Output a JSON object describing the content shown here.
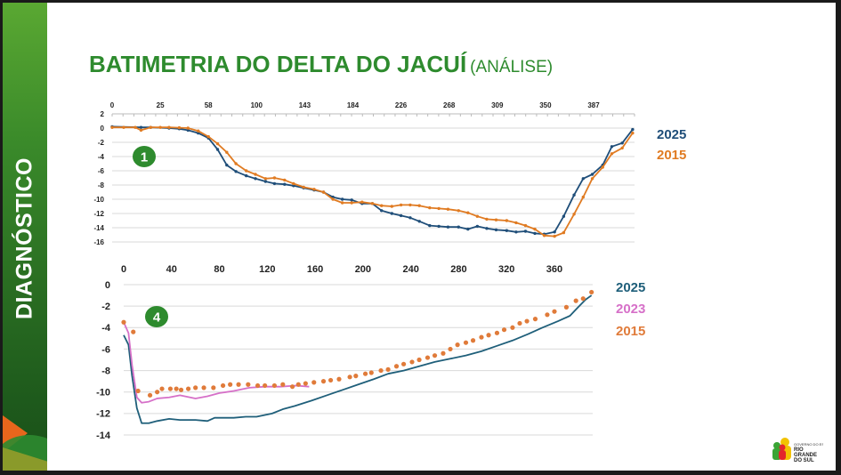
{
  "sidebar": {
    "label": "DIAGNÓSTICO"
  },
  "title": {
    "main": "BATIMETRIA DO DELTA DO JACUÍ",
    "sub": "(ANÁLISE)"
  },
  "colors": {
    "green": "#2e8b2e",
    "s2025": "#1f4e79",
    "s2015": "#e07b22",
    "s2023": "#d670c8",
    "badge": "#2e8b2e"
  },
  "logo": {
    "text": "GOVERNO DO ESTADO RIO GRANDE DO SUL"
  },
  "chart_data": [
    {
      "type": "line",
      "badge": "1",
      "xticks": [
        0,
        25,
        58,
        100,
        143,
        184,
        226,
        268,
        309,
        350,
        387
      ],
      "yticks": [
        2,
        0,
        -2,
        -4,
        -6,
        -8,
        -10,
        -12,
        -14,
        -16
      ],
      "ylim": [
        -16,
        2
      ],
      "grid": true,
      "legend_position": "right",
      "series": [
        {
          "name": "2025",
          "color": "#1f4e79",
          "markers": true,
          "x": [
            0,
            15,
            20,
            31,
            38,
            44,
            51,
            58,
            66,
            74,
            82,
            91,
            99,
            108,
            116,
            125,
            133,
            142,
            151,
            159,
            167,
            175,
            183,
            192,
            201,
            209,
            218,
            226,
            234,
            242,
            251,
            259,
            267,
            276,
            284,
            292,
            300,
            308,
            317,
            325,
            333,
            341,
            349,
            357,
            364,
            372,
            379,
            386,
            394,
            401,
            409,
            417
          ],
          "y": [
            0.2,
            0.1,
            0.1,
            0,
            -0.1,
            -0.3,
            -0.7,
            -1.4,
            -3.0,
            -5.2,
            -6.1,
            -6.7,
            -7.1,
            -7.5,
            -7.8,
            -7.9,
            -8.1,
            -8.4,
            -8.7,
            -9.0,
            -9.7,
            -10.0,
            -10.1,
            -10.6,
            -10.6,
            -11.6,
            -12.0,
            -12.3,
            -12.6,
            -13.1,
            -13.7,
            -13.8,
            -13.9,
            -13.9,
            -14.2,
            -13.8,
            -14.1,
            -14.3,
            -14.4,
            -14.6,
            -14.5,
            -14.8,
            -14.9,
            -14.6,
            -12.4,
            -9.4,
            -7.1,
            -6.5,
            -5.2,
            -2.6,
            -2.1,
            -0.2
          ]
        },
        {
          "name": "2015",
          "color": "#e07b22",
          "markers": true,
          "x": [
            0,
            6,
            12,
            15,
            20,
            25,
            31,
            38,
            44,
            51,
            58,
            66,
            74,
            82,
            91,
            99,
            108,
            116,
            125,
            133,
            142,
            151,
            159,
            167,
            175,
            183,
            192,
            201,
            209,
            218,
            226,
            234,
            242,
            251,
            259,
            267,
            276,
            284,
            292,
            300,
            308,
            317,
            325,
            333,
            341,
            349,
            357,
            364,
            372,
            379,
            386,
            394,
            401,
            409,
            417
          ],
          "y": [
            0.1,
            0.1,
            0.1,
            -0.3,
            0.1,
            0.1,
            0.1,
            0.05,
            0,
            -0.4,
            -1.2,
            -2.2,
            -3.4,
            -5.0,
            -6.0,
            -6.5,
            -7.1,
            -7.0,
            -7.3,
            -7.8,
            -8.3,
            -8.6,
            -9.0,
            -10.0,
            -10.5,
            -10.5,
            -10.4,
            -10.6,
            -10.9,
            -11.0,
            -10.8,
            -10.8,
            -10.9,
            -11.2,
            -11.3,
            -11.4,
            -11.6,
            -11.9,
            -12.4,
            -12.8,
            -12.9,
            -13.0,
            -13.3,
            -13.7,
            -14.2,
            -15.1,
            -15.2,
            -14.7,
            -12.1,
            -9.7,
            -7.1,
            -5.5,
            -3.6,
            -2.8,
            -0.7
          ]
        }
      ]
    },
    {
      "type": "line",
      "badge": "4",
      "xticks": [
        0,
        40,
        80,
        120,
        160,
        200,
        240,
        280,
        320,
        360
      ],
      "yticks": [
        0,
        -2,
        -4,
        -6,
        -8,
        -10,
        -12,
        -14
      ],
      "xlim": [
        0,
        392
      ],
      "ylim": [
        -14,
        0
      ],
      "grid": true,
      "legend_position": "right",
      "series": [
        {
          "name": "2025",
          "color": "#1f5f7a",
          "style": "line",
          "x": [
            0,
            4,
            7,
            11,
            15,
            21,
            28,
            38,
            47,
            60,
            70,
            76,
            92,
            102,
            111,
            124,
            133,
            143,
            157,
            170,
            183,
            196,
            209,
            221,
            234,
            247,
            260,
            273,
            286,
            299,
            312,
            325,
            338,
            350,
            363,
            373,
            379,
            386,
            391
          ],
          "y": [
            -4.7,
            -5.6,
            -8.5,
            -11.5,
            -12.9,
            -12.9,
            -12.7,
            -12.5,
            -12.6,
            -12.6,
            -12.7,
            -12.4,
            -12.4,
            -12.3,
            -12.3,
            -12.0,
            -11.6,
            -11.3,
            -10.8,
            -10.3,
            -9.8,
            -9.3,
            -8.8,
            -8.3,
            -8.0,
            -7.6,
            -7.2,
            -6.9,
            -6.6,
            -6.2,
            -5.7,
            -5.2,
            -4.6,
            -4.0,
            -3.4,
            -2.9,
            -2.2,
            -1.4,
            -1.0
          ]
        },
        {
          "name": "2023",
          "color": "#d670c8",
          "style": "line",
          "x": [
            0,
            4,
            7,
            11,
            15,
            21,
            28,
            38,
            47,
            60,
            70,
            80,
            92,
            105,
            118,
            131,
            144,
            155
          ],
          "y": [
            -3.5,
            -4.5,
            -7.5,
            -10.5,
            -11.0,
            -10.9,
            -10.6,
            -10.5,
            -10.3,
            -10.6,
            -10.4,
            -10.1,
            -9.9,
            -9.6,
            -9.5,
            -9.5,
            -9.4,
            -9.5
          ]
        },
        {
          "name": "2015",
          "color": "#e07b3a",
          "style": "dots",
          "x": [
            0,
            8,
            12,
            22,
            28,
            32,
            39,
            44,
            48,
            54,
            60,
            67,
            75,
            83,
            89,
            96,
            104,
            112,
            118,
            126,
            133,
            141,
            146,
            152,
            159,
            167,
            173,
            180,
            189,
            194,
            202,
            207,
            215,
            221,
            228,
            234,
            241,
            247,
            254,
            260,
            267,
            273,
            279,
            286,
            292,
            299,
            305,
            312,
            318,
            325,
            331,
            337,
            344,
            354,
            360,
            370,
            378,
            384,
            391
          ],
          "y": [
            -3.5,
            -4.4,
            -9.9,
            -10.3,
            -10.0,
            -9.7,
            -9.7,
            -9.7,
            -9.8,
            -9.7,
            -9.6,
            -9.6,
            -9.6,
            -9.4,
            -9.3,
            -9.3,
            -9.3,
            -9.4,
            -9.4,
            -9.4,
            -9.3,
            -9.5,
            -9.3,
            -9.2,
            -9.1,
            -9.0,
            -8.9,
            -8.8,
            -8.6,
            -8.5,
            -8.3,
            -8.2,
            -8.0,
            -7.9,
            -7.6,
            -7.4,
            -7.2,
            -7.0,
            -6.8,
            -6.6,
            -6.4,
            -6.0,
            -5.6,
            -5.4,
            -5.2,
            -4.9,
            -4.7,
            -4.5,
            -4.2,
            -4.0,
            -3.6,
            -3.4,
            -3.2,
            -2.8,
            -2.5,
            -2.1,
            -1.5,
            -1.3,
            -0.7
          ]
        }
      ]
    }
  ]
}
